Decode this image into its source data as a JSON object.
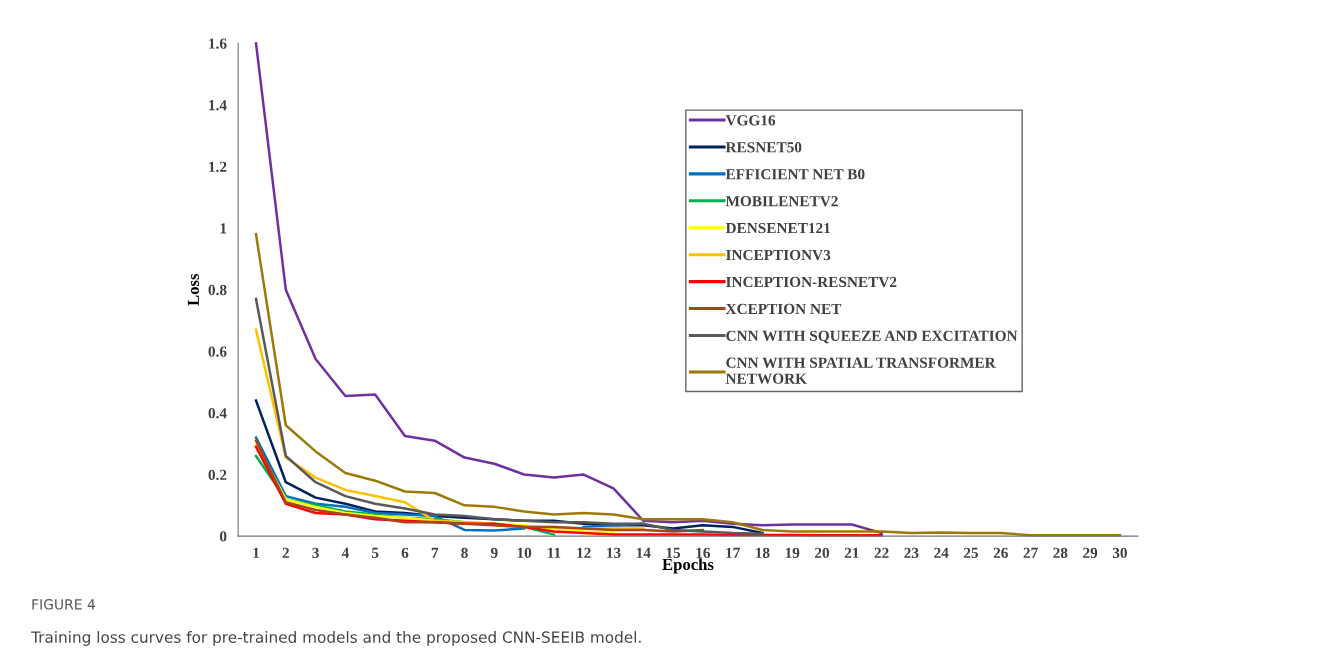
{
  "chart_data": {
    "type": "line",
    "categories": [
      "1",
      "2",
      "3",
      "4",
      "5",
      "6",
      "7",
      "8",
      "9",
      "10",
      "11",
      "12",
      "13",
      "14",
      "15",
      "16",
      "17",
      "18",
      "19",
      "20",
      "21",
      "22",
      "23",
      "24",
      "25",
      "26",
      "27",
      "28",
      "29",
      "30"
    ],
    "xlabel": "Epochs",
    "ylabel": "Loss",
    "ylim": [
      0,
      1.6
    ],
    "yticks": [
      0,
      0.2,
      0.4,
      0.6,
      0.8,
      1,
      1.2,
      1.4,
      1.6
    ],
    "grid": false,
    "legend": "top right",
    "marker": "none",
    "line_style": "solid",
    "annotations": [
      "FIGURE 4",
      "Training loss curves for pre-trained models and the proposed CNN-SEEIB model."
    ],
    "series": [
      {
        "name": "VGG16",
        "color": "#7030a0",
        "values": [
          1.6,
          0.8,
          0.575,
          0.455,
          0.46,
          0.325,
          0.31,
          0.255,
          0.235,
          0.2,
          0.19,
          0.2,
          0.155,
          0.05,
          0.045,
          0.05,
          0.04,
          0.035,
          0.038,
          0.038,
          0.038,
          0.01,
          null,
          null,
          null,
          null,
          null,
          null,
          null,
          null
        ]
      },
      {
        "name": "RESNET50",
        "color": "#002060",
        "values": [
          0.44,
          0.175,
          0.125,
          0.105,
          0.08,
          0.075,
          0.065,
          0.06,
          0.055,
          0.05,
          0.05,
          0.04,
          0.035,
          0.035,
          0.025,
          0.035,
          0.03,
          0.01,
          null,
          null,
          null,
          null,
          null,
          null,
          null,
          null,
          null,
          null,
          null,
          null
        ]
      },
      {
        "name": "EFFICIENT NET B0",
        "color": "#0070c0",
        "values": [
          0.32,
          0.13,
          0.105,
          0.095,
          0.075,
          0.07,
          0.065,
          0.02,
          0.018,
          0.025,
          null,
          0.03,
          0.035,
          0.04,
          null,
          null,
          null,
          null,
          null,
          null,
          null,
          null,
          null,
          null,
          null,
          null,
          null,
          null,
          null,
          null
        ]
      },
      {
        "name": "MOBILENETV2",
        "color": "#00b050",
        "values": [
          0.26,
          0.12,
          0.1,
          0.08,
          0.07,
          0.06,
          0.055,
          0.045,
          0.04,
          0.03,
          0.005,
          null,
          null,
          null,
          null,
          null,
          null,
          null,
          null,
          null,
          null,
          null,
          null,
          null,
          null,
          null,
          null,
          null,
          null,
          null
        ]
      },
      {
        "name": "DENSENET121",
        "color": "#ffff00",
        "values": [
          0.3,
          0.12,
          0.095,
          0.075,
          0.065,
          0.06,
          0.05,
          0.045,
          0.04,
          0.035,
          0.025,
          0.015,
          0.01,
          null,
          null,
          null,
          null,
          null,
          null,
          null,
          null,
          null,
          null,
          null,
          null,
          null,
          null,
          null,
          null,
          null
        ]
      },
      {
        "name": "INCEPTIONV3",
        "color": "#ffc000",
        "values": [
          0.67,
          0.255,
          0.19,
          0.15,
          0.13,
          0.11,
          0.05,
          0.045,
          0.035,
          0.03,
          0.03,
          0.025,
          0.025,
          0.025,
          null,
          null,
          null,
          null,
          null,
          null,
          null,
          null,
          null,
          null,
          null,
          null,
          null,
          null,
          null,
          null
        ]
      },
      {
        "name": "INCEPTION-RESNETV2",
        "color": "#ff0000",
        "values": [
          0.29,
          0.105,
          0.075,
          0.07,
          0.055,
          0.05,
          0.045,
          0.04,
          0.04,
          0.03,
          0.015,
          0.01,
          0.005,
          0.005,
          0.005,
          0.005,
          0.004,
          0.004,
          0.004,
          0.003,
          0.003,
          0.003,
          null,
          null,
          null,
          null,
          null,
          null,
          null,
          null
        ]
      },
      {
        "name": "XCEPTION NET",
        "color": "#a5461a",
        "values": [
          0.31,
          0.11,
          0.085,
          0.07,
          0.06,
          0.045,
          0.045,
          0.04,
          0.035,
          0.03,
          0.03,
          0.025,
          0.02,
          0.02,
          0.015,
          0.02,
          null,
          null,
          null,
          null,
          null,
          null,
          null,
          null,
          null,
          null,
          null,
          null,
          null,
          null
        ]
      },
      {
        "name": "CNN WITH SQUEEZE AND EXCITATION",
        "color": "#595959",
        "values": [
          0.77,
          0.26,
          0.175,
          0.13,
          0.105,
          0.09,
          0.07,
          0.065,
          0.055,
          0.05,
          0.045,
          0.045,
          0.04,
          0.04,
          0.02,
          0.015,
          0.01,
          0.008,
          null,
          null,
          null,
          null,
          null,
          null,
          null,
          null,
          null,
          null,
          null,
          null
        ]
      },
      {
        "name": "CNN WITH SPATIAL TRANSFORMER\nNETWORK",
        "color": "#9c7a0a",
        "values": [
          0.98,
          0.36,
          0.275,
          0.205,
          0.18,
          0.145,
          0.14,
          0.1,
          0.095,
          0.08,
          0.07,
          0.075,
          0.07,
          0.055,
          0.055,
          0.055,
          0.045,
          0.02,
          0.015,
          0.015,
          0.015,
          0.015,
          0.01,
          0.012,
          0.01,
          0.01,
          0.003,
          0.003,
          0.003,
          0.003
        ]
      }
    ]
  }
}
